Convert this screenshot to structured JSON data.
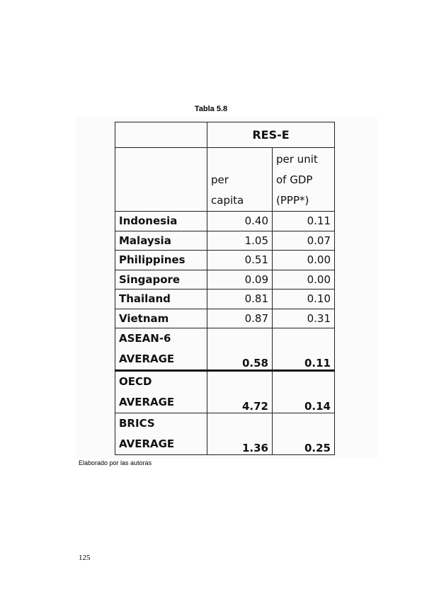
{
  "caption": "Tabla 5.8",
  "table": {
    "group_header": "RES-E",
    "col1_header": [
      "per",
      "capita"
    ],
    "col2_header": [
      "per unit",
      "of GDP",
      "(PPP*)"
    ],
    "rows": [
      {
        "name": "Indonesia",
        "per_capita": "0.40",
        "per_gdp": "0.11"
      },
      {
        "name": "Malaysia",
        "per_capita": "1.05",
        "per_gdp": "0.07"
      },
      {
        "name": "Philippines",
        "per_capita": "0.51",
        "per_gdp": "0.00"
      },
      {
        "name": "Singapore",
        "per_capita": "0.09",
        "per_gdp": "0.00"
      },
      {
        "name": "Thailand",
        "per_capita": "0.81",
        "per_gdp": "0.10"
      },
      {
        "name": "Vietnam",
        "per_capita": "0.87",
        "per_gdp": "0.31"
      }
    ],
    "averages": [
      {
        "name_line1": "ASEAN-6",
        "name_line2": "AVERAGE",
        "per_capita": "0.58",
        "per_gdp": "0.11"
      },
      {
        "name_line1": "OECD",
        "name_line2": "AVERAGE",
        "per_capita": "4.72",
        "per_gdp": "0.14"
      },
      {
        "name_line1": "BRICS",
        "name_line2": "AVERAGE",
        "per_capita": "1.36",
        "per_gdp": "0.25"
      }
    ]
  },
  "source_note": "Elaborado por las autoras",
  "page_number": "125"
}
